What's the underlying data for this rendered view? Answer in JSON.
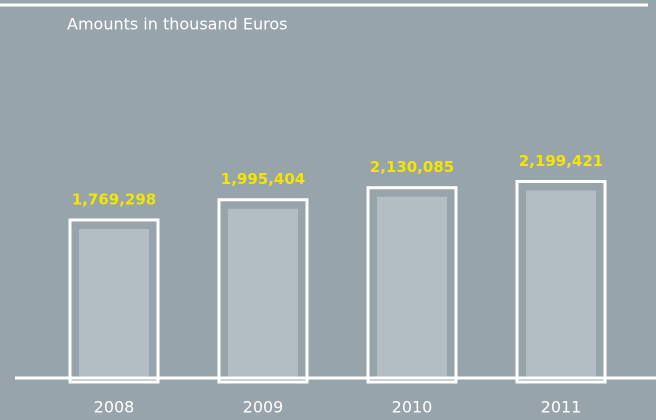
{
  "chart_data": {
    "type": "bar",
    "title": "Amounts in thousand Euros",
    "categories": [
      "2008",
      "2009",
      "2010",
      "2011"
    ],
    "values": [
      1769298,
      1995404,
      2130085,
      2199421
    ],
    "value_labels": [
      "1,769,298",
      "1,995,404",
      "2,130,085",
      "2,199,421"
    ],
    "color": "#b3bec4",
    "label_color": "#f5e500",
    "ylim": [
      0,
      3000000
    ]
  }
}
